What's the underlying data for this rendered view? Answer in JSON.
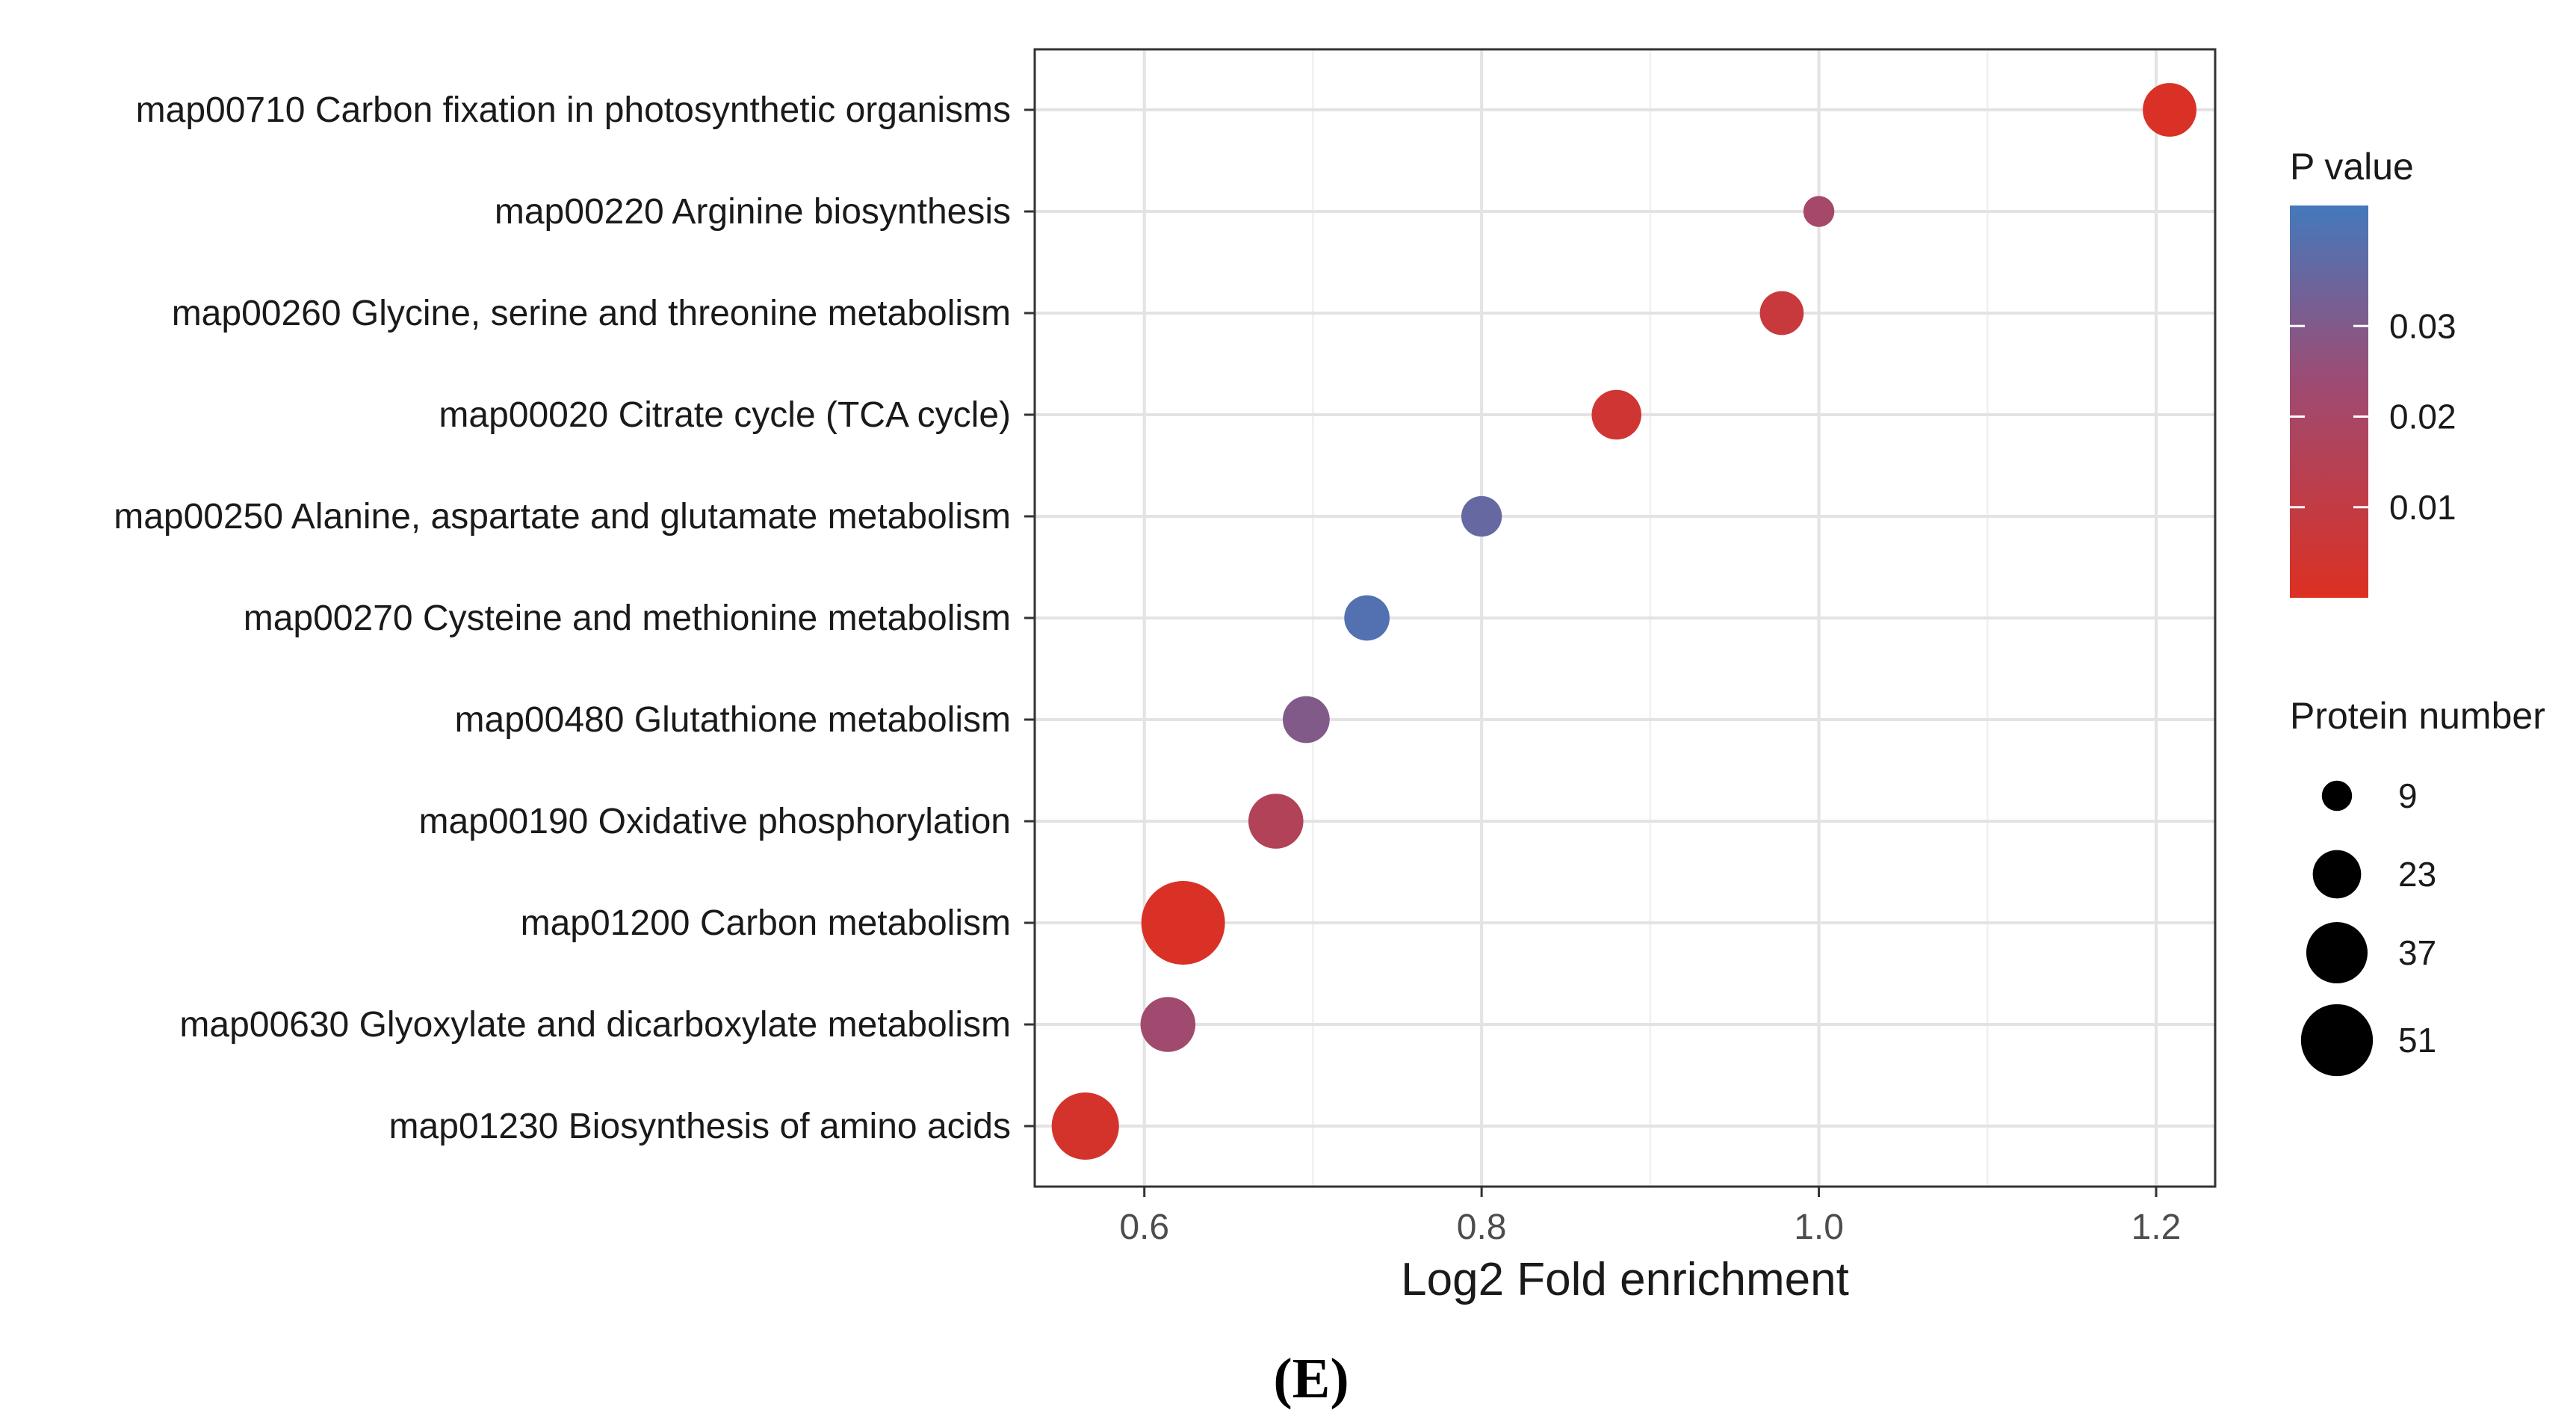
{
  "chart_data": {
    "type": "scatter",
    "subtype": "bubble",
    "title": "",
    "xlabel": "Log2 Fold enrichment",
    "ylabel": "",
    "xlim": [
      0.535,
      1.235
    ],
    "x_ticks": [
      0.6,
      0.8,
      1.0,
      1.2
    ],
    "x_tick_labels": [
      "0.6",
      "0.8",
      "1.0",
      "1.2"
    ],
    "grid": true,
    "categories": [
      "map00710 Carbon fixation in photosynthetic organisms",
      "map00220 Arginine biosynthesis",
      "map00260 Glycine, serine and threonine metabolism",
      "map00020 Citrate cycle (TCA cycle)",
      "map00250 Alanine, aspartate and glutamate metabolism",
      "map00270 Cysteine and methionine metabolism",
      "map00480 Glutathione metabolism",
      "map00190 Oxidative phosphorylation",
      "map01200 Carbon metabolism",
      "map00630 Glyoxylate and dicarboxylate metabolism",
      "map01230 Biosynthesis of amino acids"
    ],
    "points": [
      {
        "category": "map00710 Carbon fixation in photosynthetic organisms",
        "x": 1.208,
        "p_value": 0.001,
        "protein_number": 21
      },
      {
        "category": "map00220 Arginine biosynthesis",
        "x": 1.0,
        "p_value": 0.021,
        "protein_number": 7
      },
      {
        "category": "map00260 Glycine, serine and threonine metabolism",
        "x": 0.978,
        "p_value": 0.008,
        "protein_number": 14
      },
      {
        "category": "map00020 Citrate cycle (TCA cycle)",
        "x": 0.88,
        "p_value": 0.005,
        "protein_number": 18
      },
      {
        "category": "map00250 Alanine, aspartate and glutamate metabolism",
        "x": 0.8,
        "p_value": 0.036,
        "protein_number": 12
      },
      {
        "category": "map00270 Cysteine and methionine metabolism",
        "x": 0.732,
        "p_value": 0.04,
        "protein_number": 15
      },
      {
        "category": "map00480 Glutathione metabolism",
        "x": 0.696,
        "p_value": 0.03,
        "protein_number": 16
      },
      {
        "category": "map00190 Oxidative phosphorylation",
        "x": 0.678,
        "p_value": 0.016,
        "protein_number": 22
      },
      {
        "category": "map01200 Carbon metabolism",
        "x": 0.623,
        "p_value": 0.001,
        "protein_number": 51
      },
      {
        "category": "map00630 Glyoxylate and dicarboxylate metabolism",
        "x": 0.614,
        "p_value": 0.023,
        "protein_number": 22
      },
      {
        "category": "map01230 Biosynthesis of amino acids",
        "x": 0.565,
        "p_value": 0.003,
        "protein_number": 33
      }
    ],
    "color_legend": {
      "title": "P value",
      "range": [
        0.0,
        0.0433
      ],
      "ticks": [
        0.03,
        0.02,
        0.01
      ],
      "tick_labels": [
        "0.03",
        "0.02",
        "0.01"
      ],
      "low_color": "#DC3022",
      "high_color": "#4479BC"
    },
    "size_legend": {
      "title": "Protein number",
      "values": [
        9,
        23,
        37,
        51
      ],
      "labels": [
        "9",
        "23",
        "37",
        "51"
      ]
    }
  },
  "caption": "(E)"
}
